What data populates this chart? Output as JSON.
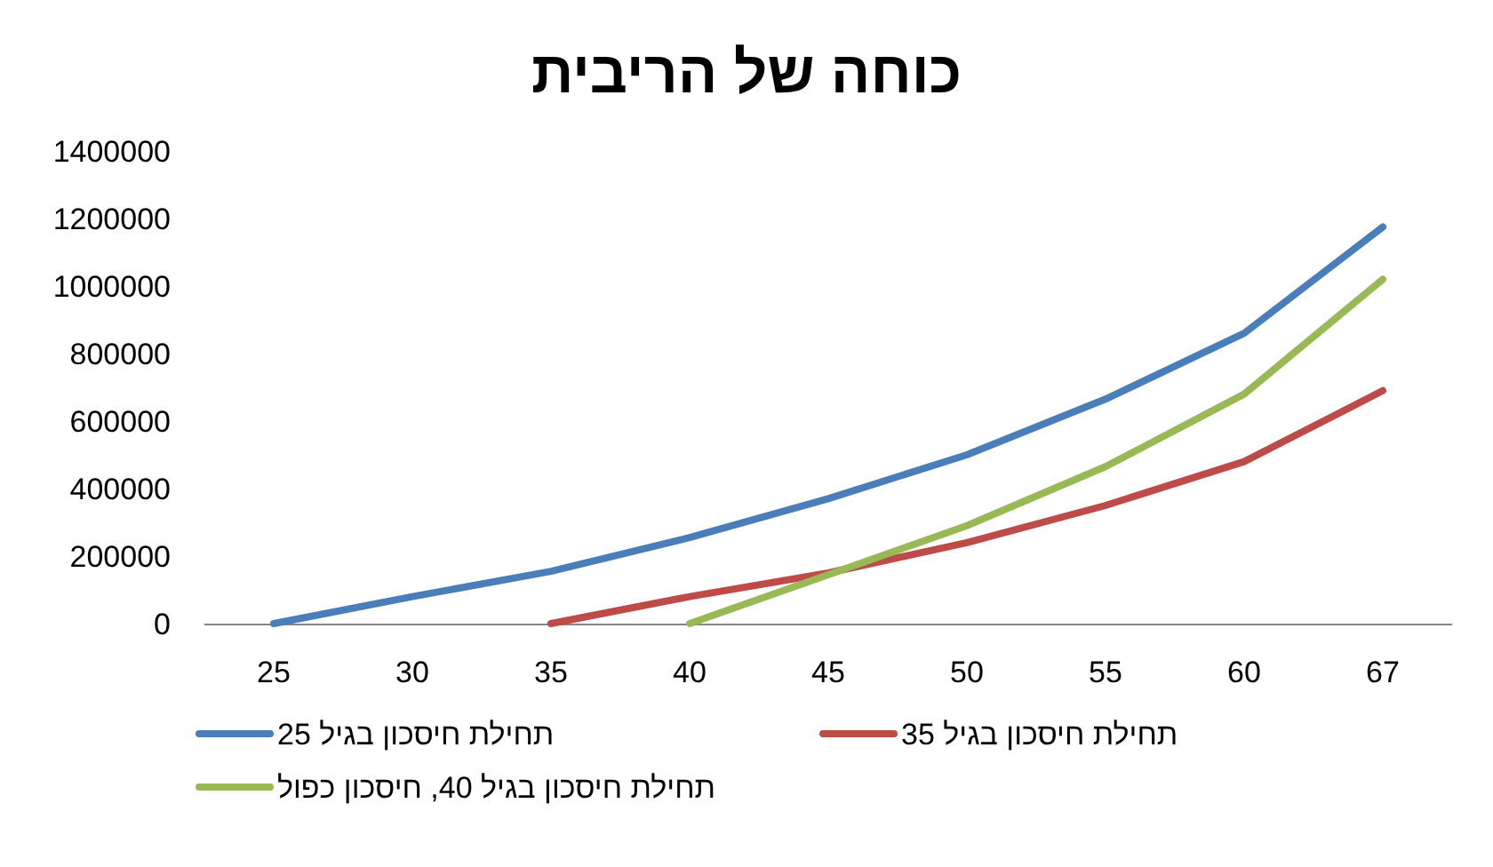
{
  "chart_data": {
    "type": "line",
    "title": "כוחה של הריבית",
    "categories": [
      "25",
      "30",
      "35",
      "40",
      "45",
      "50",
      "55",
      "60",
      "67"
    ],
    "series": [
      {
        "name": "תחילת חיסכון בגיל 25",
        "color": "#4a7ebb",
        "values": [
          0,
          80000,
          155000,
          255000,
          370000,
          500000,
          665000,
          860000,
          1175000
        ]
      },
      {
        "name": "תחילת חיסכון בגיל 35",
        "color": "#be4b48",
        "values": [
          null,
          null,
          0,
          80000,
          150000,
          240000,
          350000,
          480000,
          690000
        ]
      },
      {
        "name": "תחילת חיסכון בגיל 40, חיסכון כפול",
        "color": "#98b954",
        "values": [
          null,
          null,
          null,
          0,
          145000,
          290000,
          465000,
          680000,
          1020000
        ]
      }
    ],
    "ylim": [
      0,
      1400000
    ],
    "yticks": [
      0,
      200000,
      400000,
      600000,
      800000,
      1000000,
      1200000,
      1400000
    ],
    "grid": false,
    "legend": "bottom",
    "marker": "none",
    "line_style": "solid"
  }
}
